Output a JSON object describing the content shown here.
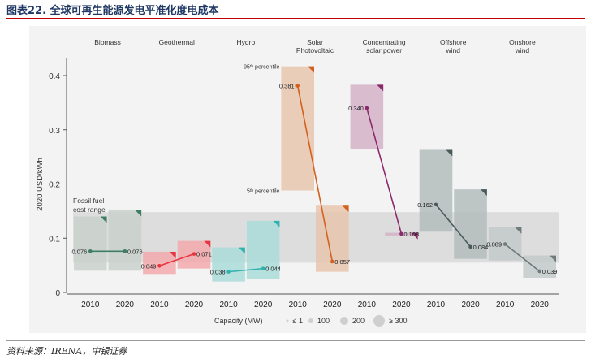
{
  "title": "图表22. 全球可再生能源发电平准化度电成本",
  "source": "资料来源：IRENA，中银证券",
  "chart_data": {
    "type": "range-and-line",
    "ylabel": "2020 USD/kWh",
    "ylim": [
      0,
      0.45
    ],
    "yticks": [
      {
        "value": 0,
        "label": "0"
      },
      {
        "value": 0.1,
        "label": "0.1"
      },
      {
        "value": 0.2,
        "label": "0.2"
      },
      {
        "value": 0.3,
        "label": "0.3"
      },
      {
        "value": 0.4,
        "label": "0.4"
      }
    ],
    "x_tick_labels": [
      "2010",
      "2020"
    ],
    "fossil_fuel_range": {
      "label_line1": "Fossil fuel",
      "label_line2": "cost range",
      "low": 0.055,
      "high": 0.148
    },
    "percentile_labels": {
      "p95": "95ᵗʰ percentile",
      "p5": "5ᵗʰ percentile"
    },
    "technologies": [
      {
        "name_lines": [
          "Biomass"
        ],
        "color": "#3f7e64",
        "band_color": "#c9d1cc",
        "v2010": 0.076,
        "v2020": 0.076,
        "label2010": "0.076",
        "label2020": "0.076",
        "range2010": [
          0.04,
          0.14
        ],
        "range2020": [
          0.04,
          0.152
        ]
      },
      {
        "name_lines": [
          "Geothermal"
        ],
        "color": "#e8343f",
        "band_color": "#f3a9ad",
        "v2010": 0.049,
        "v2020": 0.071,
        "label2010": "0.049",
        "label2020": "0.071",
        "range2010": [
          0.034,
          0.075
        ],
        "range2020": [
          0.044,
          0.095
        ]
      },
      {
        "name_lines": [
          "Hydro"
        ],
        "color": "#2fb3ad",
        "band_color": "#aadcd9",
        "v2010": 0.038,
        "v2020": 0.044,
        "label2010": "0.038",
        "label2020": "0.044",
        "range2010": [
          0.02,
          0.083
        ],
        "range2020": [
          0.025,
          0.132
        ]
      },
      {
        "name_lines": [
          "Solar",
          "Photovoltaic"
        ],
        "color": "#d2611f",
        "band_color": "#e8c6ad",
        "v2010": 0.381,
        "v2020": 0.057,
        "label2010": "0.381",
        "label2020": "0.057",
        "range2010": [
          0.188,
          0.417
        ],
        "range2020": [
          0.038,
          0.16
        ]
      },
      {
        "name_lines": [
          "Concentrating",
          "solar power"
        ],
        "color": "#8b2a6b",
        "band_color": "#d4b3c8",
        "v2010": 0.34,
        "v2020": 0.108,
        "label2010": "0.340",
        "label2020": "0.108",
        "range2010": [
          0.265,
          0.383
        ],
        "range2020": [
          0.105,
          0.11
        ]
      },
      {
        "name_lines": [
          "Offshore",
          "wind"
        ],
        "color": "#4a5a5a",
        "band_color": "#b3bcbc",
        "v2010": 0.162,
        "v2020": 0.084,
        "label2010": "0.162",
        "label2020": "0.084",
        "range2010": [
          0.112,
          0.263
        ],
        "range2020": [
          0.062,
          0.19
        ]
      },
      {
        "name_lines": [
          "Onshore",
          "wind"
        ],
        "color": "#6f7b7b",
        "band_color": "#c3c9c9",
        "v2010": 0.089,
        "v2020": 0.039,
        "label2010": "0.089",
        "label2020": "0.039",
        "range2010": [
          0.059,
          0.12
        ],
        "range2020": [
          0.027,
          0.068
        ]
      }
    ],
    "capacity_legend": {
      "title": "Capacity (MW)",
      "items": [
        {
          "label": "≤ 1",
          "size": 1
        },
        {
          "label": "100",
          "size": 2
        },
        {
          "label": "200",
          "size": 3
        },
        {
          "label": "≥ 300",
          "size": 4
        }
      ]
    }
  }
}
